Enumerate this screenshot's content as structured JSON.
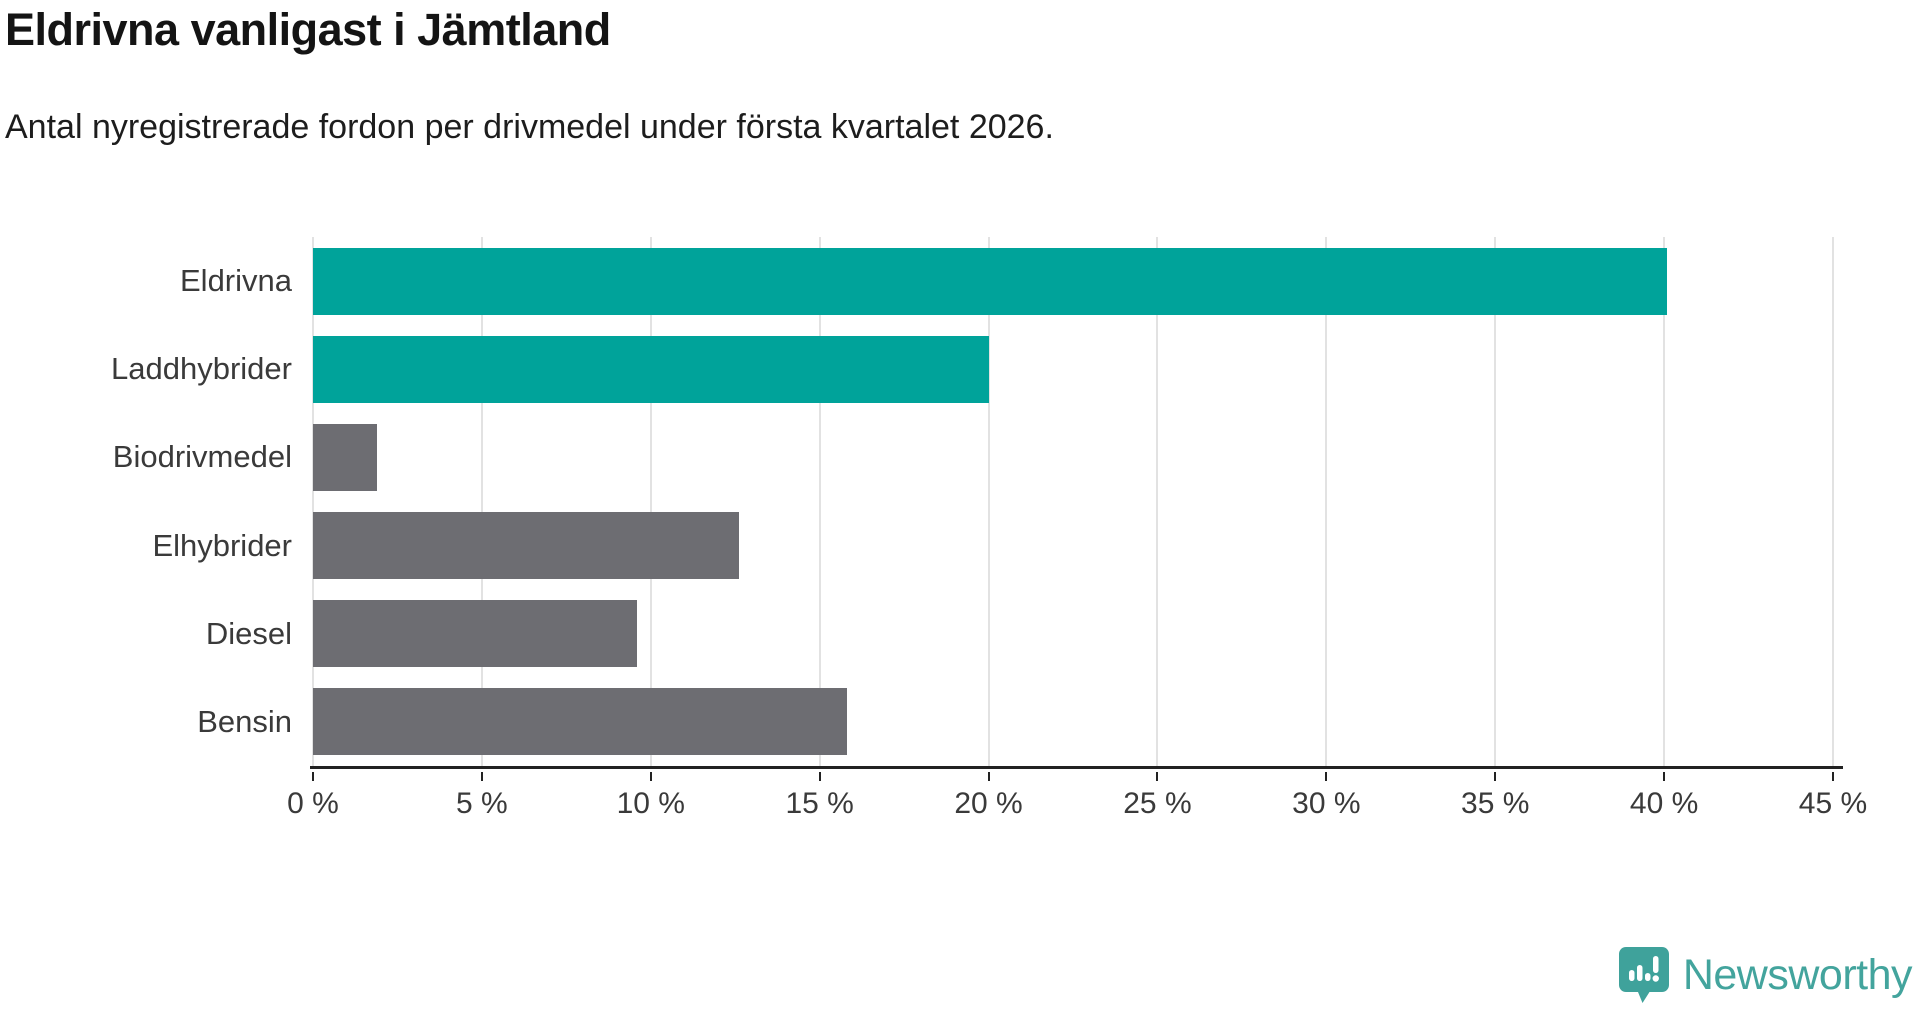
{
  "title": "Eldrivna vanligast i Jämtland",
  "subtitle": "Antal nyregistrerade fordon per drivmedel under första kvartalet 2026.",
  "chart_data": {
    "type": "bar",
    "orientation": "horizontal",
    "title": "Eldrivna vanligast i Jämtland",
    "subtitle": "Antal nyregistrerade fordon per drivmedel under första kvartalet 2026.",
    "categories": [
      "Eldrivna",
      "Laddhybrider",
      "Biodrivmedel",
      "Elhybrider",
      "Diesel",
      "Bensin"
    ],
    "values": [
      40.1,
      20.0,
      1.9,
      12.6,
      9.6,
      15.8
    ],
    "bar_colors": [
      "#00a39a",
      "#00a39a",
      "#6d6d72",
      "#6d6d72",
      "#6d6d72",
      "#6d6d72"
    ],
    "highlight_color": "#00a39a",
    "default_color": "#6d6d72",
    "xlabel": "",
    "ylabel": "",
    "xlim": [
      0,
      45
    ],
    "x_ticks": [
      {
        "value": 0,
        "label": "0 %"
      },
      {
        "value": 5,
        "label": "5 %"
      },
      {
        "value": 10,
        "label": "10 %"
      },
      {
        "value": 15,
        "label": "15 %"
      },
      {
        "value": 20,
        "label": "20 %"
      },
      {
        "value": 25,
        "label": "25 %"
      },
      {
        "value": 30,
        "label": "30 %"
      },
      {
        "value": 35,
        "label": "35 %"
      },
      {
        "value": 40,
        "label": "40 %"
      },
      {
        "value": 45,
        "label": "45 %"
      }
    ],
    "grid": "vertical",
    "legend": "none"
  },
  "branding": {
    "logo_text": "Newsworthy",
    "logo_color": "#43a49d"
  }
}
